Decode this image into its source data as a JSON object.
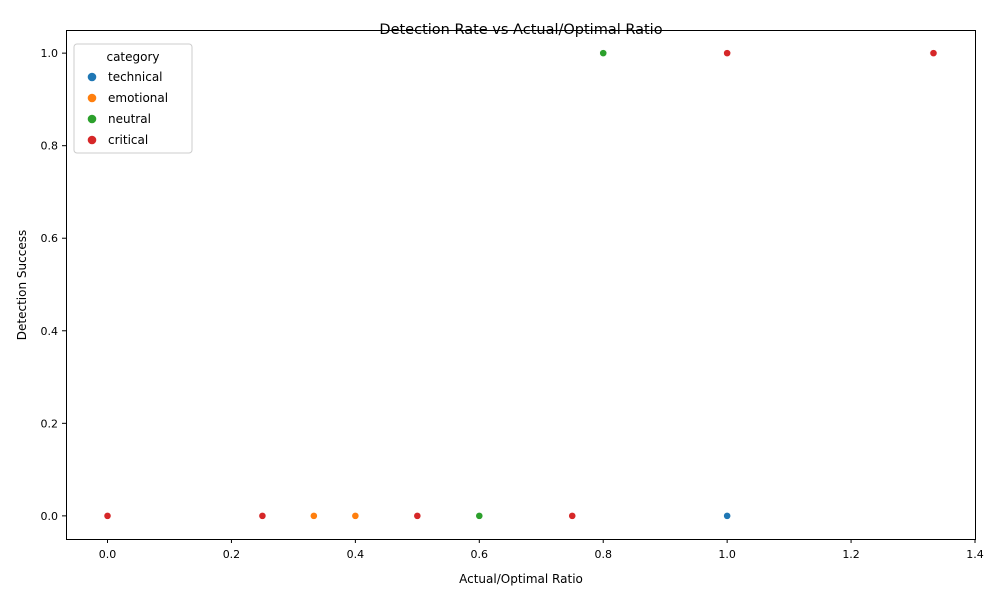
{
  "chart_data": {
    "type": "scatter",
    "title": "Detection Rate vs Actual/Optimal Ratio",
    "xlabel": "Actual/Optimal Ratio",
    "ylabel": "Detection Success",
    "xlim": [
      -0.067,
      1.4
    ],
    "ylim": [
      -0.05,
      1.05
    ],
    "xticks": [
      "0.0",
      "0.2",
      "0.4",
      "0.6",
      "0.8",
      "1.0",
      "1.2",
      "1.4"
    ],
    "yticks": [
      "0.0",
      "0.2",
      "0.4",
      "0.6",
      "0.8",
      "1.0"
    ],
    "grid": false,
    "legend": {
      "title": "category",
      "placement": "top-left"
    },
    "series": [
      {
        "name": "technical",
        "color": "#1f77b4",
        "points": [
          [
            1.0,
            0
          ]
        ]
      },
      {
        "name": "emotional",
        "color": "#ff7f0e",
        "points": [
          [
            0.333,
            0
          ],
          [
            0.4,
            0
          ]
        ]
      },
      {
        "name": "neutral",
        "color": "#2ca02c",
        "points": [
          [
            0.8,
            1
          ],
          [
            0.5,
            0
          ],
          [
            0.6,
            0
          ]
        ]
      },
      {
        "name": "critical",
        "color": "#d62728",
        "points": [
          [
            1.0,
            1
          ],
          [
            1.333,
            1
          ],
          [
            0.0,
            0
          ],
          [
            0.25,
            0
          ],
          [
            0.5,
            0
          ],
          [
            0.75,
            0
          ]
        ]
      }
    ]
  }
}
